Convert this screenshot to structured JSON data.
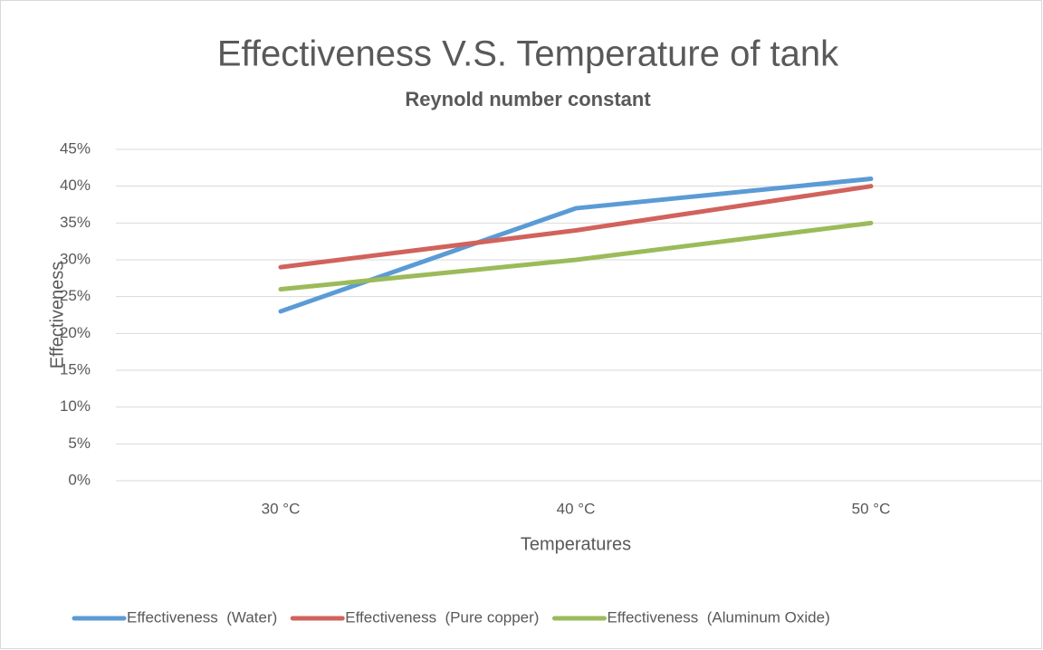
{
  "chart_data": {
    "type": "line",
    "title": "Effectiveness V.S. Temperature of tank",
    "subtitle": "Reynold number constant",
    "x_label": "Temperatures",
    "y_label": "Effectiveness",
    "categories": [
      "30 °C",
      "40 °C",
      "50 °C"
    ],
    "series": [
      {
        "name": "Effectiveness  (Water)",
        "color": "#5b9bd5",
        "values": [
          23,
          37,
          41
        ]
      },
      {
        "name": "Effectiveness  (Pure copper)",
        "color": "#d1625c",
        "values": [
          29,
          34,
          40
        ]
      },
      {
        "name": "Effectiveness  (Aluminum Oxide)",
        "color": "#9bbb59",
        "values": [
          26,
          30,
          35
        ]
      }
    ],
    "ylim": [
      0,
      45
    ],
    "yticks": [
      {
        "value": 0,
        "label": "0%"
      },
      {
        "value": 5,
        "label": "5%"
      },
      {
        "value": 10,
        "label": "10%"
      },
      {
        "value": 15,
        "label": "15%"
      },
      {
        "value": 20,
        "label": "20%"
      },
      {
        "value": 25,
        "label": "25%"
      },
      {
        "value": 30,
        "label": "30%"
      },
      {
        "value": 35,
        "label": "35%"
      },
      {
        "value": 40,
        "label": "40%"
      },
      {
        "value": 45,
        "label": "45%"
      }
    ],
    "grid": true,
    "legend": "bottom"
  }
}
